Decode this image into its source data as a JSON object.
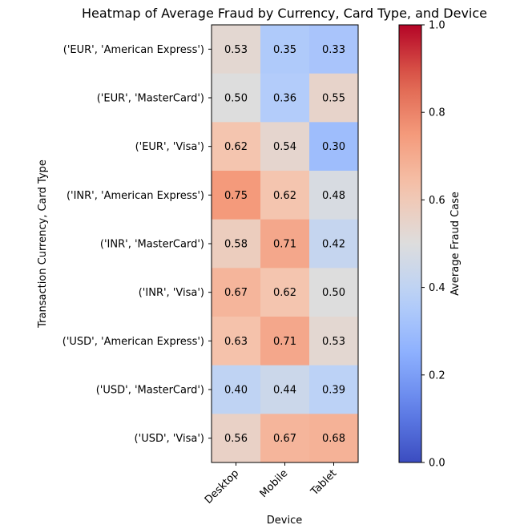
{
  "chart_data": {
    "type": "heatmap",
    "title": "Heatmap of Average Fraud by Currency, Card Type, and Device",
    "xlabel": "Device",
    "ylabel": "Transaction Currency, Card Type",
    "x_categories": [
      "Desktop",
      "Mobile",
      "Tablet"
    ],
    "y_categories": [
      "('EUR', 'American Express')",
      "('EUR', 'MasterCard')",
      "('EUR', 'Visa')",
      "('INR', 'American Express')",
      "('INR', 'MasterCard')",
      "('INR', 'Visa')",
      "('USD', 'American Express')",
      "('USD', 'MasterCard')",
      "('USD', 'Visa')"
    ],
    "values": [
      [
        0.53,
        0.35,
        0.33
      ],
      [
        0.5,
        0.36,
        0.55
      ],
      [
        0.62,
        0.54,
        0.3
      ],
      [
        0.75,
        0.62,
        0.48
      ],
      [
        0.58,
        0.71,
        0.42
      ],
      [
        0.67,
        0.62,
        0.5
      ],
      [
        0.63,
        0.71,
        0.53
      ],
      [
        0.4,
        0.44,
        0.39
      ],
      [
        0.56,
        0.67,
        0.68
      ]
    ],
    "value_labels": [
      [
        "0.53",
        "0.35",
        "0.33"
      ],
      [
        "0.50",
        "0.36",
        "0.55"
      ],
      [
        "0.62",
        "0.54",
        "0.30"
      ],
      [
        "0.75",
        "0.62",
        "0.48"
      ],
      [
        "0.58",
        "0.71",
        "0.42"
      ],
      [
        "0.67",
        "0.62",
        "0.50"
      ],
      [
        "0.63",
        "0.71",
        "0.53"
      ],
      [
        "0.40",
        "0.44",
        "0.39"
      ],
      [
        "0.56",
        "0.67",
        "0.68"
      ]
    ],
    "colorbar": {
      "label": "Average Fraud Case",
      "colormap": "coolwarm",
      "range": [
        0.0,
        1.0
      ],
      "ticks": [
        0.0,
        0.2,
        0.4,
        0.6,
        0.8,
        1.0
      ],
      "tick_labels": [
        "0.0",
        "0.2",
        "0.4",
        "0.6",
        "0.8",
        "1.0"
      ]
    }
  }
}
